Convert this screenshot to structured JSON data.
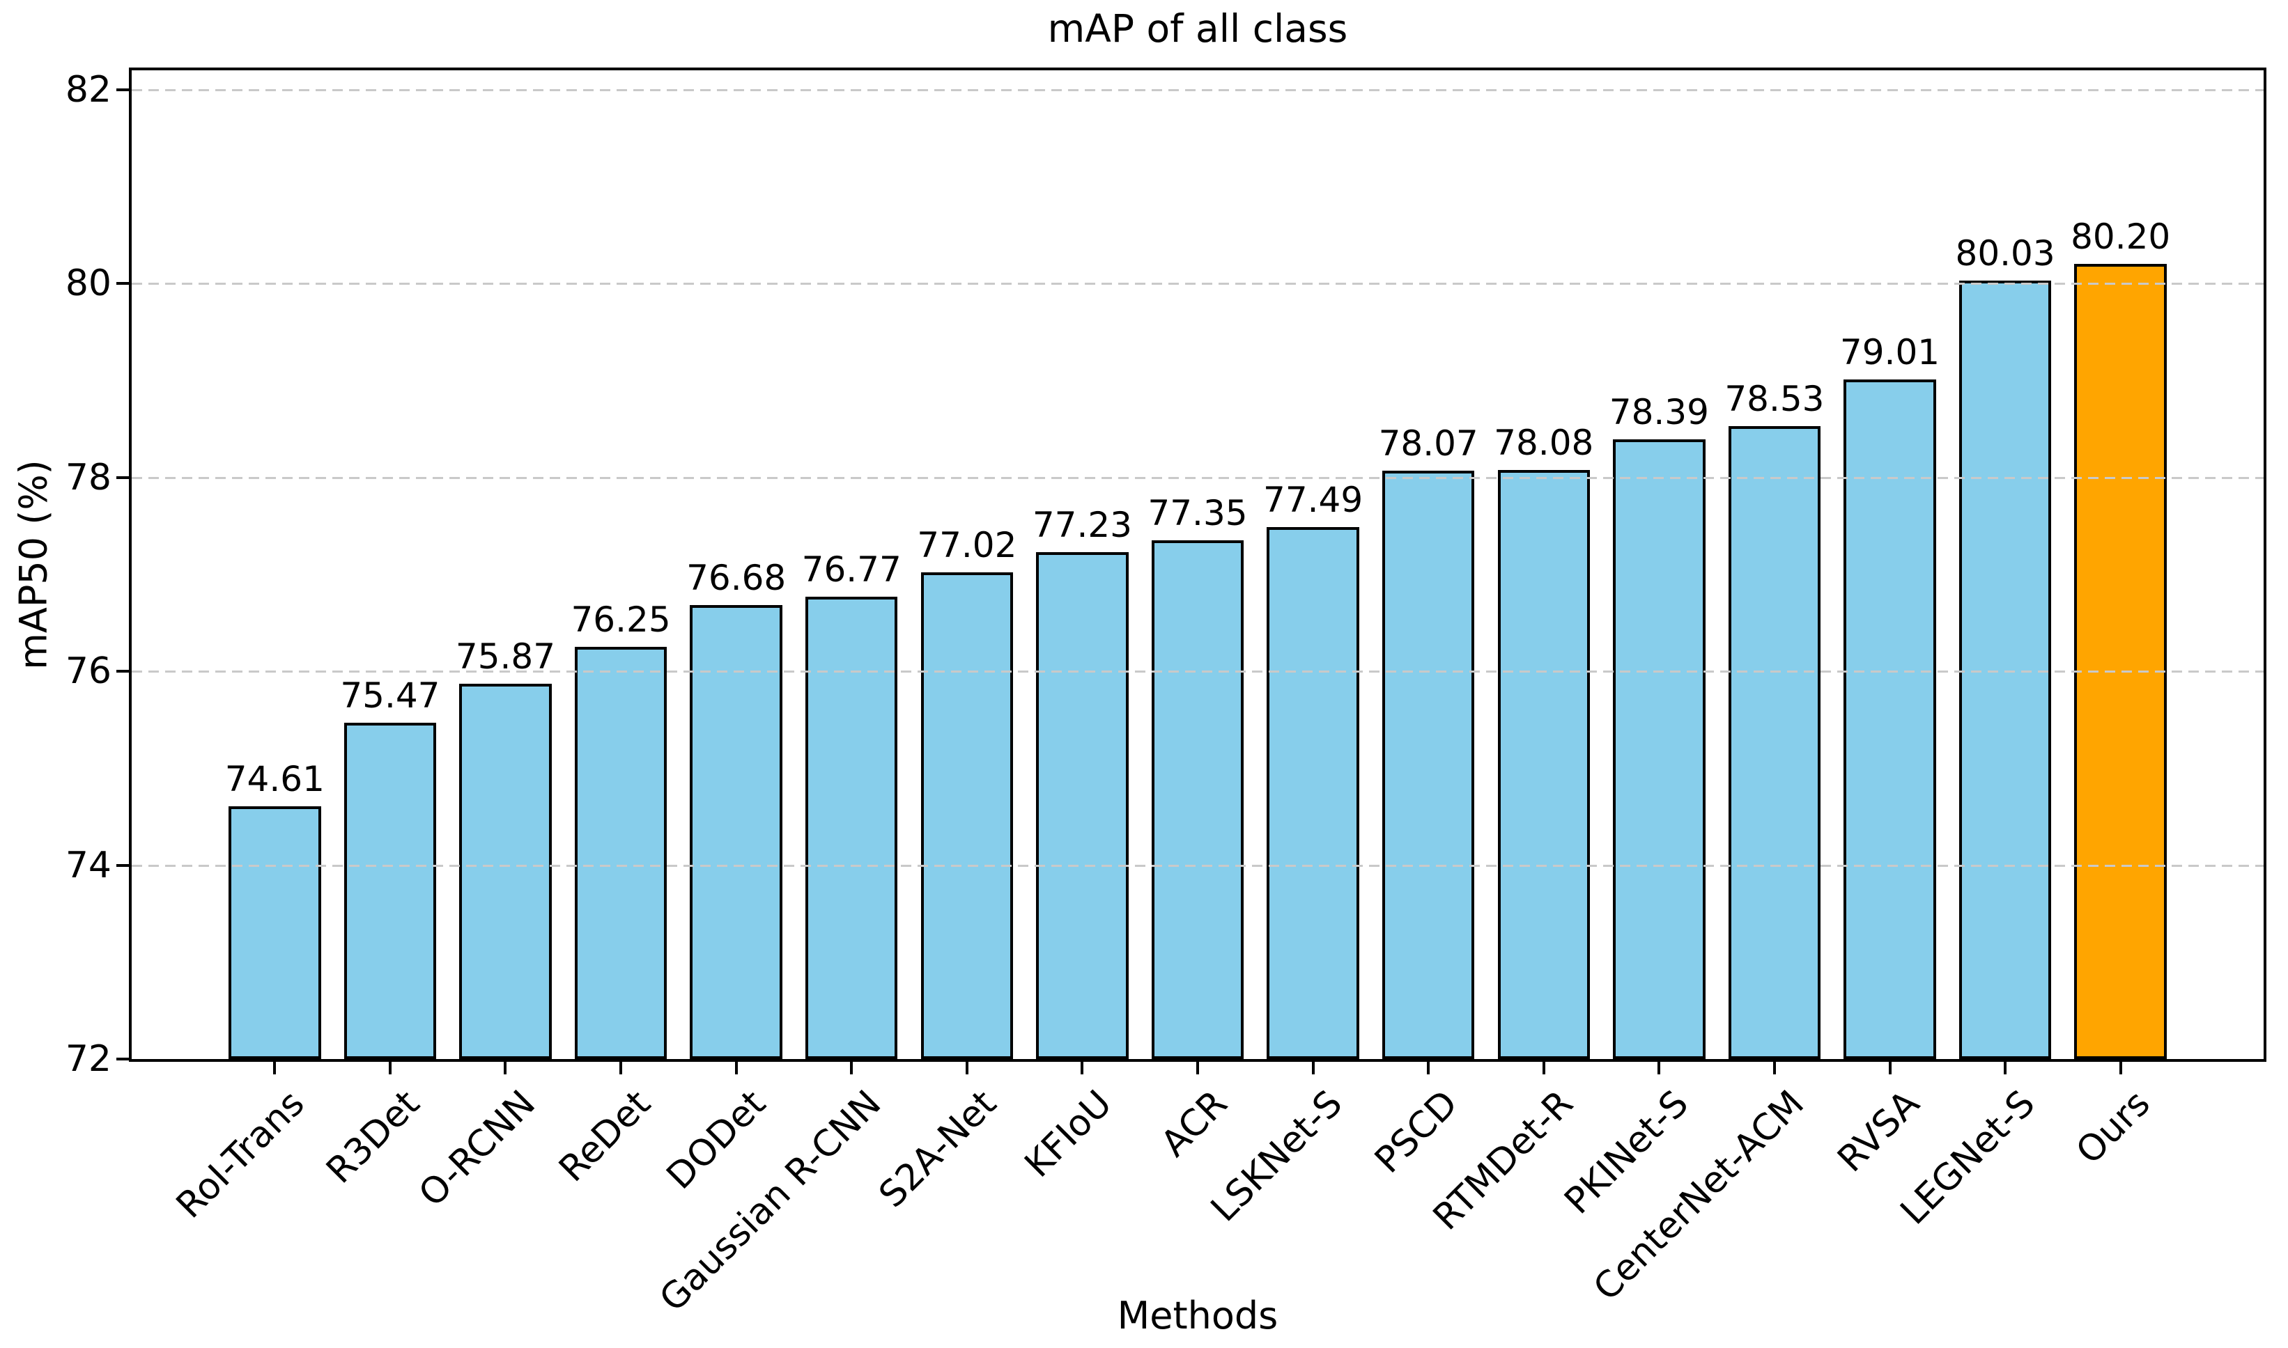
{
  "chart_data": {
    "type": "bar",
    "title": "mAP of all class",
    "xlabel": "Methods",
    "ylabel": "mAP50 (%)",
    "categories": [
      "RoI-Trans",
      "R3Det",
      "O-RCNN",
      "ReDet",
      "DODet",
      "Gaussian R-CNN",
      "S2A-Net",
      "KFIoU",
      "ACR",
      "LSKNet-S",
      "PSCD",
      "RTMDet-R",
      "PKINet-S",
      "CenterNet-ACM",
      "RVSA",
      "LEGNet-S",
      "Ours"
    ],
    "values": [
      74.61,
      75.47,
      75.87,
      76.25,
      76.68,
      76.77,
      77.02,
      77.23,
      77.35,
      77.49,
      78.07,
      78.08,
      78.39,
      78.53,
      79.01,
      80.03,
      80.2
    ],
    "value_labels": [
      "74.61",
      "75.47",
      "75.87",
      "76.25",
      "76.68",
      "76.77",
      "77.02",
      "77.23",
      "77.35",
      "77.49",
      "78.07",
      "78.08",
      "78.39",
      "78.53",
      "79.01",
      "80.03",
      "80.20"
    ],
    "yticks": [
      72,
      74,
      76,
      78,
      80,
      82
    ],
    "ylim": [
      72,
      82.2
    ],
    "xlim_units": [
      -1.24,
      17.24
    ],
    "bar_width_units": 0.8,
    "bar_color": "#87CEEB",
    "highlight_color": "#FFA500",
    "highlight_index": 16,
    "edge_color": "#000000",
    "grid": "horizontal dashed, drawn above bars",
    "grid_color": "#c9c9c9",
    "legend": "none"
  }
}
